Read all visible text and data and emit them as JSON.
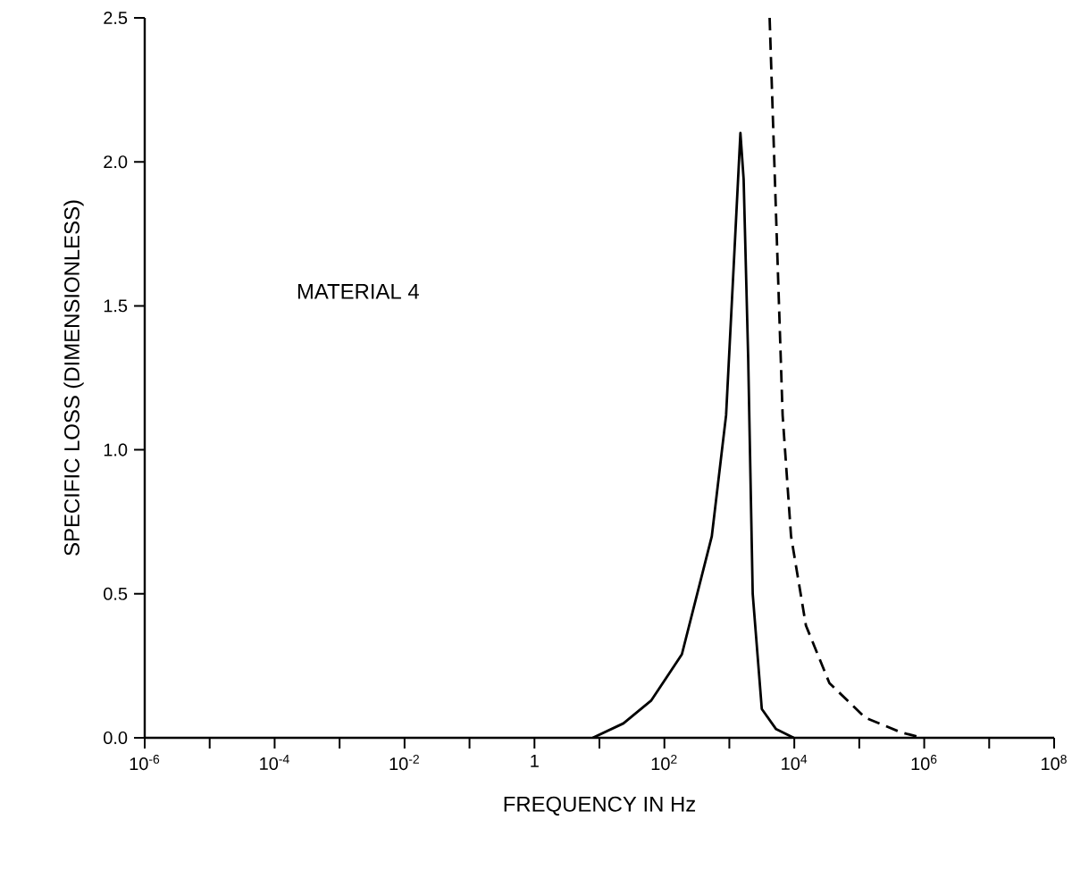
{
  "chart_data": {
    "type": "line",
    "xlabel": "FREQUENCY  IN  Hz",
    "ylabel": "SPECIFIC LOSS (DIMENSIONLESS)",
    "annotations": [
      "MATERIAL  4"
    ],
    "log": "x",
    "xlim": [
      1e-06,
      100000000.0
    ],
    "ylim": [
      0,
      2.5
    ],
    "xticks": [
      {
        "value": 1e-06,
        "label": "10$^{-6}$"
      },
      {
        "value": 1e-05,
        "label": null
      },
      {
        "value": 0.0001,
        "label": "10$^{-4}$"
      },
      {
        "value": 0.001,
        "label": null
      },
      {
        "value": 0.01,
        "label": "10$^{-2}$"
      },
      {
        "value": 0.1,
        "label": null
      },
      1,
      {
        "value": 10,
        "label": null
      },
      {
        "value": 100,
        "label": "10$^{2}$"
      },
      {
        "value": 1000,
        "label": null
      },
      {
        "value": 10000,
        "label": "10$^{4}$"
      },
      {
        "value": 100000,
        "label": null
      },
      {
        "value": 1000000,
        "label": "10$^{6}$"
      },
      {
        "value": 10000000,
        "label": null
      },
      {
        "value": 100000000,
        "label": "10$^{8}$"
      }
    ],
    "yticks": [
      {
        "value": 0,
        "label": "0.0"
      },
      {
        "value": 0.5,
        "label": "0.5"
      },
      {
        "value": 1,
        "label": "1.0"
      },
      {
        "value": 1.5,
        "label": "1.5"
      },
      {
        "value": 2,
        "label": "2.0"
      },
      {
        "value": 2.5,
        "label": "2.5"
      }
    ],
    "series": [
      {
        "color": "#000000",
        "line_style": "solid",
        "x": [
          7.9,
          23.4,
          63,
          186,
          537,
          891,
          1230,
          1480,
          1660,
          1950,
          2290,
          3160,
          5250,
          9800
        ],
        "values": [
          0,
          0.05,
          0.13,
          0.29,
          0.7,
          1.12,
          1.74,
          2.1,
          1.94,
          1.32,
          0.5,
          0.1,
          0.03,
          0
        ]
      },
      {
        "color": "#000000",
        "line_style": "dashed",
        "x": [
          4170,
          5370,
          6610,
          8910,
          15100,
          34700,
          123000,
          427000,
          912000
        ],
        "values": [
          2.5,
          1.74,
          1.12,
          0.7,
          0.39,
          0.19,
          0.07,
          0.02,
          0
        ]
      }
    ]
  }
}
